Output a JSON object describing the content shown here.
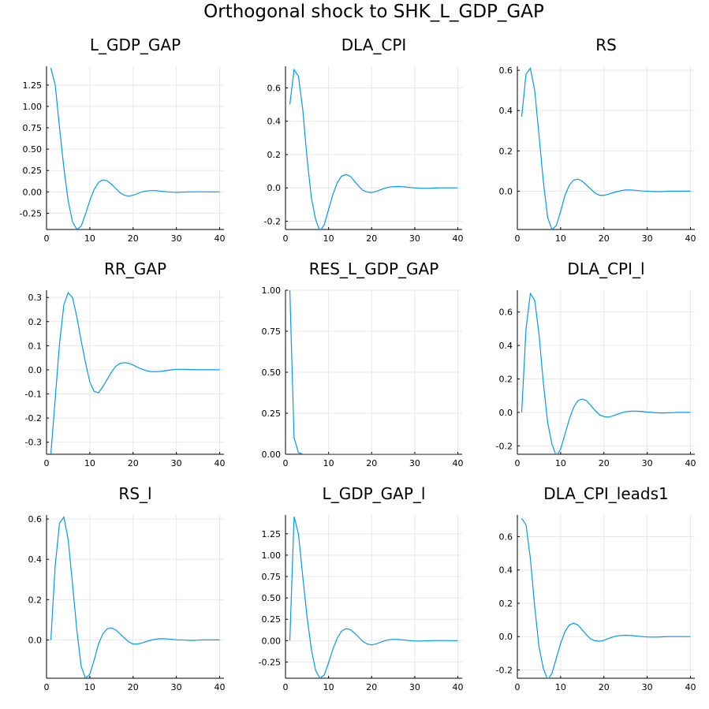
{
  "figure": {
    "title": "Orthogonal shock to SHK_L_GDP_GAP"
  },
  "colors": {
    "series": "#009af9",
    "grid": "#e8e8e8",
    "axis": "#000000"
  },
  "chart_data": [
    {
      "type": "line",
      "title": "L_GDP_GAP",
      "xlim": [
        0,
        41
      ],
      "ylim": [
        -0.44,
        1.47
      ],
      "xticks": [
        0,
        10,
        20,
        30,
        40
      ],
      "xtick_labels": [
        "0",
        "10",
        "20",
        "30",
        "40"
      ],
      "yticks": [
        -0.25,
        0,
        0.25,
        0.5,
        0.75,
        1,
        1.25
      ],
      "ytick_labels": [
        "-0.25",
        "0.00",
        "0.25",
        "0.50",
        "0.75",
        "1.00",
        "1.25"
      ],
      "grid": true,
      "x": [
        1,
        2,
        3,
        4,
        5,
        6,
        7,
        8,
        9,
        10,
        11,
        12,
        13,
        14,
        15,
        16,
        17,
        18,
        19,
        20,
        21,
        22,
        23,
        24,
        25,
        26,
        27,
        28,
        29,
        30,
        31,
        32,
        33,
        34,
        35,
        36,
        37,
        38,
        39,
        40
      ],
      "values": [
        1.45,
        1.25,
        0.75,
        0.28,
        -0.1,
        -0.35,
        -0.44,
        -0.4,
        -0.26,
        -0.1,
        0.03,
        0.11,
        0.14,
        0.13,
        0.09,
        0.04,
        -0.01,
        -0.04,
        -0.05,
        -0.04,
        -0.02,
        0.0,
        0.01,
        0.015,
        0.015,
        0.01,
        0.005,
        0.0,
        -0.004,
        -0.005,
        -0.004,
        -0.002,
        0.0,
        0.001,
        0.001,
        0.001,
        0.0,
        0.0,
        0.0,
        0.0
      ]
    },
    {
      "type": "line",
      "title": "DLA_CPI",
      "xlim": [
        0,
        41
      ],
      "ylim": [
        -0.25,
        0.73
      ],
      "xticks": [
        0,
        10,
        20,
        30,
        40
      ],
      "xtick_labels": [
        "0",
        "10",
        "20",
        "30",
        "40"
      ],
      "yticks": [
        -0.2,
        0,
        0.2,
        0.4,
        0.6
      ],
      "ytick_labels": [
        "-0.2",
        "0.0",
        "0.2",
        "0.4",
        "0.6"
      ],
      "grid": true,
      "x": [
        1,
        2,
        3,
        4,
        5,
        6,
        7,
        8,
        9,
        10,
        11,
        12,
        13,
        14,
        15,
        16,
        17,
        18,
        19,
        20,
        21,
        22,
        23,
        24,
        25,
        26,
        27,
        28,
        29,
        30,
        31,
        32,
        33,
        34,
        35,
        36,
        37,
        38,
        39,
        40
      ],
      "values": [
        0.5,
        0.71,
        0.67,
        0.47,
        0.18,
        -0.06,
        -0.19,
        -0.26,
        -0.22,
        -0.13,
        -0.04,
        0.03,
        0.07,
        0.08,
        0.07,
        0.04,
        0.01,
        -0.015,
        -0.025,
        -0.028,
        -0.022,
        -0.012,
        -0.003,
        0.004,
        0.007,
        0.008,
        0.007,
        0.005,
        0.002,
        0.0,
        -0.002,
        -0.003,
        -0.003,
        -0.002,
        -0.001,
        0.0,
        0.0,
        0.0,
        0.0,
        0.0
      ]
    },
    {
      "type": "line",
      "title": "RS",
      "xlim": [
        0,
        41
      ],
      "ylim": [
        -0.19,
        0.62
      ],
      "xticks": [
        0,
        10,
        20,
        30,
        40
      ],
      "xtick_labels": [
        "0",
        "10",
        "20",
        "30",
        "40"
      ],
      "yticks": [
        0,
        0.2,
        0.4,
        0.6
      ],
      "ytick_labels": [
        "0.0",
        "0.2",
        "0.4",
        "0.6"
      ],
      "grid": true,
      "x": [
        1,
        2,
        3,
        4,
        5,
        6,
        7,
        8,
        9,
        10,
        11,
        12,
        13,
        14,
        15,
        16,
        17,
        18,
        19,
        20,
        21,
        22,
        23,
        24,
        25,
        26,
        27,
        28,
        29,
        30,
        31,
        32,
        33,
        34,
        35,
        36,
        37,
        38,
        39,
        40
      ],
      "values": [
        0.37,
        0.58,
        0.61,
        0.5,
        0.28,
        0.05,
        -0.13,
        -0.19,
        -0.17,
        -0.1,
        -0.02,
        0.03,
        0.055,
        0.06,
        0.05,
        0.03,
        0.01,
        -0.01,
        -0.02,
        -0.02,
        -0.015,
        -0.008,
        -0.002,
        0.003,
        0.006,
        0.006,
        0.005,
        0.003,
        0.001,
        0.0,
        -0.001,
        -0.002,
        -0.002,
        -0.001,
        0.0,
        0.0,
        0.0,
        0.0,
        0.0,
        0.0
      ]
    },
    {
      "type": "line",
      "title": "RR_GAP",
      "xlim": [
        0,
        41
      ],
      "ylim": [
        -0.35,
        0.33
      ],
      "xticks": [
        0,
        10,
        20,
        30,
        40
      ],
      "xtick_labels": [
        "0",
        "10",
        "20",
        "30",
        "40"
      ],
      "yticks": [
        -0.3,
        -0.2,
        -0.1,
        0,
        0.1,
        0.2,
        0.3
      ],
      "ytick_labels": [
        "-0.3",
        "-0.2",
        "-0.1",
        "0.0",
        "0.1",
        "0.2",
        "0.3"
      ],
      "grid": true,
      "x": [
        1,
        2,
        3,
        4,
        5,
        6,
        7,
        8,
        9,
        10,
        11,
        12,
        13,
        14,
        15,
        16,
        17,
        18,
        19,
        20,
        21,
        22,
        23,
        24,
        25,
        26,
        27,
        28,
        29,
        30,
        31,
        32,
        33,
        34,
        35,
        36,
        37,
        38,
        39,
        40
      ],
      "values": [
        -0.35,
        -0.12,
        0.11,
        0.27,
        0.32,
        0.3,
        0.22,
        0.12,
        0.03,
        -0.05,
        -0.09,
        -0.095,
        -0.07,
        -0.04,
        -0.01,
        0.015,
        0.027,
        0.03,
        0.027,
        0.02,
        0.011,
        0.003,
        -0.003,
        -0.007,
        -0.008,
        -0.007,
        -0.005,
        -0.002,
        0.0,
        0.002,
        0.002,
        0.002,
        0.001,
        0.001,
        0.0,
        0.0,
        0.0,
        0.0,
        0.0,
        0.0
      ]
    },
    {
      "type": "line",
      "title": "RES_L_GDP_GAP",
      "xlim": [
        0,
        41
      ],
      "ylim": [
        0,
        1.0
      ],
      "xticks": [
        0,
        10,
        20,
        30,
        40
      ],
      "xtick_labels": [
        "0",
        "10",
        "20",
        "30",
        "40"
      ],
      "yticks": [
        0,
        0.25,
        0.5,
        0.75,
        1
      ],
      "ytick_labels": [
        "0.00",
        "0.25",
        "0.50",
        "0.75",
        "1.00"
      ],
      "grid": true,
      "x": [
        1,
        2,
        3,
        4,
        5,
        6,
        7,
        8,
        9,
        10,
        11,
        12,
        13,
        14,
        15,
        16,
        17,
        18,
        19,
        20,
        21,
        22,
        23,
        24,
        25,
        26,
        27,
        28,
        29,
        30,
        31,
        32,
        33,
        34,
        35,
        36,
        37,
        38,
        39,
        40
      ],
      "values": [
        1.0,
        0.1,
        0.01,
        0.001,
        0,
        0,
        0,
        0,
        0,
        0,
        0,
        0,
        0,
        0,
        0,
        0,
        0,
        0,
        0,
        0,
        0,
        0,
        0,
        0,
        0,
        0,
        0,
        0,
        0,
        0,
        0,
        0,
        0,
        0,
        0,
        0,
        0,
        0,
        0,
        0
      ]
    },
    {
      "type": "line",
      "title": "DLA_CPI_l",
      "xlim": [
        0,
        41
      ],
      "ylim": [
        -0.25,
        0.73
      ],
      "xticks": [
        0,
        10,
        20,
        30,
        40
      ],
      "xtick_labels": [
        "0",
        "10",
        "20",
        "30",
        "40"
      ],
      "yticks": [
        -0.2,
        0,
        0.2,
        0.4,
        0.6
      ],
      "ytick_labels": [
        "-0.2",
        "0.0",
        "0.2",
        "0.4",
        "0.6"
      ],
      "grid": true,
      "x": [
        1,
        2,
        3,
        4,
        5,
        6,
        7,
        8,
        9,
        10,
        11,
        12,
        13,
        14,
        15,
        16,
        17,
        18,
        19,
        20,
        21,
        22,
        23,
        24,
        25,
        26,
        27,
        28,
        29,
        30,
        31,
        32,
        33,
        34,
        35,
        36,
        37,
        38,
        39,
        40
      ],
      "values": [
        0.0,
        0.5,
        0.71,
        0.67,
        0.47,
        0.18,
        -0.06,
        -0.19,
        -0.26,
        -0.22,
        -0.13,
        -0.04,
        0.03,
        0.07,
        0.08,
        0.07,
        0.04,
        0.01,
        -0.015,
        -0.025,
        -0.028,
        -0.022,
        -0.012,
        -0.003,
        0.004,
        0.007,
        0.008,
        0.007,
        0.005,
        0.002,
        0.0,
        -0.002,
        -0.003,
        -0.003,
        -0.002,
        -0.001,
        0.0,
        0.0,
        0.0,
        0.0
      ]
    },
    {
      "type": "line",
      "title": "RS_l",
      "xlim": [
        0,
        41
      ],
      "ylim": [
        -0.19,
        0.62
      ],
      "xticks": [
        0,
        10,
        20,
        30,
        40
      ],
      "xtick_labels": [
        "0",
        "10",
        "20",
        "30",
        "40"
      ],
      "yticks": [
        0,
        0.2,
        0.4,
        0.6
      ],
      "ytick_labels": [
        "0.0",
        "0.2",
        "0.4",
        "0.6"
      ],
      "grid": true,
      "x": [
        1,
        2,
        3,
        4,
        5,
        6,
        7,
        8,
        9,
        10,
        11,
        12,
        13,
        14,
        15,
        16,
        17,
        18,
        19,
        20,
        21,
        22,
        23,
        24,
        25,
        26,
        27,
        28,
        29,
        30,
        31,
        32,
        33,
        34,
        35,
        36,
        37,
        38,
        39,
        40
      ],
      "values": [
        0.0,
        0.37,
        0.58,
        0.61,
        0.5,
        0.28,
        0.05,
        -0.13,
        -0.19,
        -0.17,
        -0.1,
        -0.02,
        0.03,
        0.055,
        0.06,
        0.05,
        0.03,
        0.01,
        -0.01,
        -0.02,
        -0.02,
        -0.015,
        -0.008,
        -0.002,
        0.003,
        0.006,
        0.006,
        0.005,
        0.003,
        0.001,
        0.0,
        -0.001,
        -0.002,
        -0.002,
        -0.001,
        0.0,
        0.0,
        0.0,
        0.0,
        0.0
      ]
    },
    {
      "type": "line",
      "title": "L_GDP_GAP_l",
      "xlim": [
        0,
        41
      ],
      "ylim": [
        -0.44,
        1.47
      ],
      "xticks": [
        0,
        10,
        20,
        30,
        40
      ],
      "xtick_labels": [
        "0",
        "10",
        "20",
        "30",
        "40"
      ],
      "yticks": [
        -0.25,
        0,
        0.25,
        0.5,
        0.75,
        1,
        1.25
      ],
      "ytick_labels": [
        "-0.25",
        "0.00",
        "0.25",
        "0.50",
        "0.75",
        "1.00",
        "1.25"
      ],
      "grid": true,
      "x": [
        1,
        2,
        3,
        4,
        5,
        6,
        7,
        8,
        9,
        10,
        11,
        12,
        13,
        14,
        15,
        16,
        17,
        18,
        19,
        20,
        21,
        22,
        23,
        24,
        25,
        26,
        27,
        28,
        29,
        30,
        31,
        32,
        33,
        34,
        35,
        36,
        37,
        38,
        39,
        40
      ],
      "values": [
        0.0,
        1.45,
        1.25,
        0.75,
        0.28,
        -0.1,
        -0.35,
        -0.44,
        -0.4,
        -0.26,
        -0.1,
        0.03,
        0.11,
        0.14,
        0.13,
        0.09,
        0.04,
        -0.01,
        -0.04,
        -0.05,
        -0.04,
        -0.02,
        0.0,
        0.01,
        0.015,
        0.015,
        0.01,
        0.005,
        0.0,
        -0.004,
        -0.005,
        -0.004,
        -0.002,
        0.0,
        0.001,
        0.001,
        0.001,
        0.0,
        0.0,
        0.0
      ]
    },
    {
      "type": "line",
      "title": "DLA_CPI_leads1",
      "xlim": [
        0,
        41
      ],
      "ylim": [
        -0.25,
        0.73
      ],
      "xticks": [
        0,
        10,
        20,
        30,
        40
      ],
      "xtick_labels": [
        "0",
        "10",
        "20",
        "30",
        "40"
      ],
      "yticks": [
        -0.2,
        0,
        0.2,
        0.4,
        0.6
      ],
      "ytick_labels": [
        "-0.2",
        "0.0",
        "0.2",
        "0.4",
        "0.6"
      ],
      "grid": true,
      "x": [
        1,
        2,
        3,
        4,
        5,
        6,
        7,
        8,
        9,
        10,
        11,
        12,
        13,
        14,
        15,
        16,
        17,
        18,
        19,
        20,
        21,
        22,
        23,
        24,
        25,
        26,
        27,
        28,
        29,
        30,
        31,
        32,
        33,
        34,
        35,
        36,
        37,
        38,
        39,
        40
      ],
      "values": [
        0.71,
        0.67,
        0.47,
        0.18,
        -0.06,
        -0.19,
        -0.26,
        -0.22,
        -0.13,
        -0.04,
        0.03,
        0.07,
        0.08,
        0.07,
        0.04,
        0.01,
        -0.015,
        -0.025,
        -0.028,
        -0.022,
        -0.012,
        -0.003,
        0.004,
        0.007,
        0.008,
        0.007,
        0.005,
        0.002,
        0.0,
        -0.002,
        -0.003,
        -0.003,
        -0.002,
        -0.001,
        0.0,
        0.0,
        0.0,
        0.0,
        0.0,
        0.0
      ]
    }
  ]
}
